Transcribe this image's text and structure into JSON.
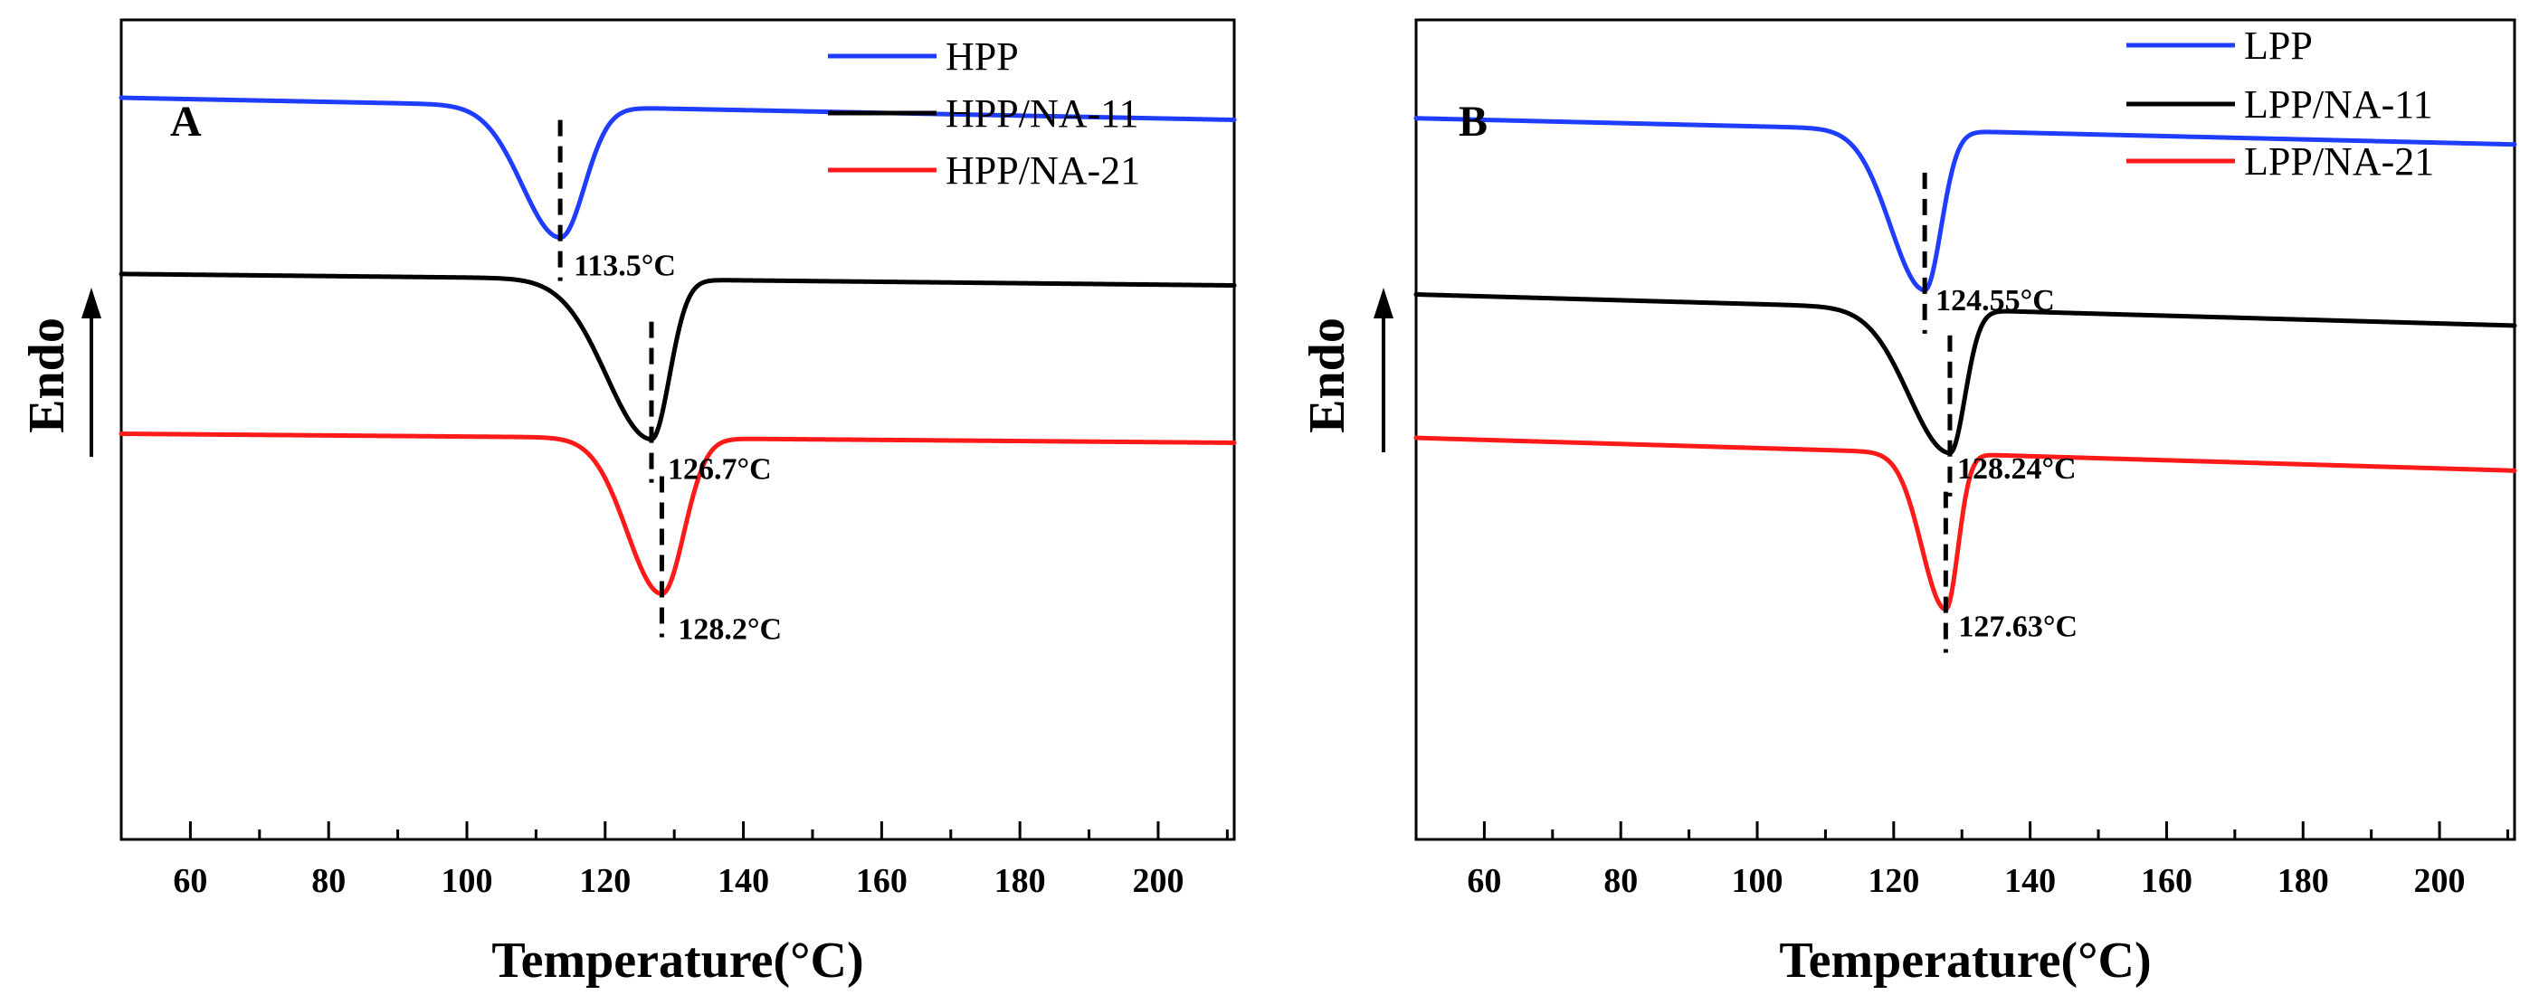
{
  "chart_data": [
    {
      "type": "line",
      "panel_label": "A",
      "xlabel": "Temperature(°C)",
      "ylabel": "Endo",
      "xlim": [
        50,
        211
      ],
      "xticks": [
        60,
        80,
        100,
        120,
        140,
        160,
        180,
        200
      ],
      "ylim": [
        0,
        1
      ],
      "grid": false,
      "legend_position": "top-right",
      "series": [
        {
          "name": "HPP",
          "color": "#1f3dff",
          "baseline": [
            [
              50,
              0.905
            ],
            [
              211,
              0.878
            ]
          ],
          "peak_temp": 113.5,
          "peak_depth": 0.16,
          "peak_left_width": 5.5,
          "peak_right_width": 3.5,
          "peak_label": "113.5°C"
        },
        {
          "name": "HPP/NA-11",
          "color": "#000000",
          "baseline": [
            [
              50,
              0.69
            ],
            [
              211,
              0.676
            ]
          ],
          "peak_temp": 126.7,
          "peak_depth": 0.195,
          "peak_left_width": 6.5,
          "peak_right_width": 2.6,
          "peak_label": "126.7°C"
        },
        {
          "name": "HPP/NA-21",
          "color": "#ff1a1a",
          "baseline": [
            [
              50,
              0.495
            ],
            [
              211,
              0.484
            ]
          ],
          "peak_temp": 128.2,
          "peak_depth": 0.19,
          "peak_left_width": 5.0,
          "peak_right_width": 3.2,
          "peak_label": "128.2°C"
        }
      ]
    },
    {
      "type": "line",
      "panel_label": "B",
      "xlabel": "Temperature(°C)",
      "ylabel": "Endo",
      "xlim": [
        50,
        211
      ],
      "xticks": [
        60,
        80,
        100,
        120,
        140,
        160,
        180,
        200
      ],
      "ylim": [
        0,
        1
      ],
      "grid": false,
      "legend_position": "top-right",
      "series": [
        {
          "name": "LPP",
          "color": "#1f3dff",
          "baseline": [
            [
              50,
              0.88
            ],
            [
              211,
              0.848
            ]
          ],
          "peak_temp": 124.55,
          "peak_depth": 0.195,
          "peak_left_width": 5.0,
          "peak_right_width": 2.4,
          "peak_label": "124.55°C"
        },
        {
          "name": "LPP/NA-11",
          "color": "#000000",
          "baseline": [
            [
              50,
              0.665
            ],
            [
              211,
              0.627
            ]
          ],
          "peak_temp": 128.24,
          "peak_depth": 0.175,
          "peak_left_width": 6.0,
          "peak_right_width": 2.2,
          "peak_label": "128.24°C"
        },
        {
          "name": "LPP/NA-21",
          "color": "#ff1a1a",
          "baseline": [
            [
              50,
              0.49
            ],
            [
              211,
              0.45
            ]
          ],
          "peak_temp": 127.63,
          "peak_depth": 0.19,
          "peak_left_width": 3.5,
          "peak_right_width": 1.8,
          "peak_label": "127.63°C"
        }
      ]
    }
  ]
}
